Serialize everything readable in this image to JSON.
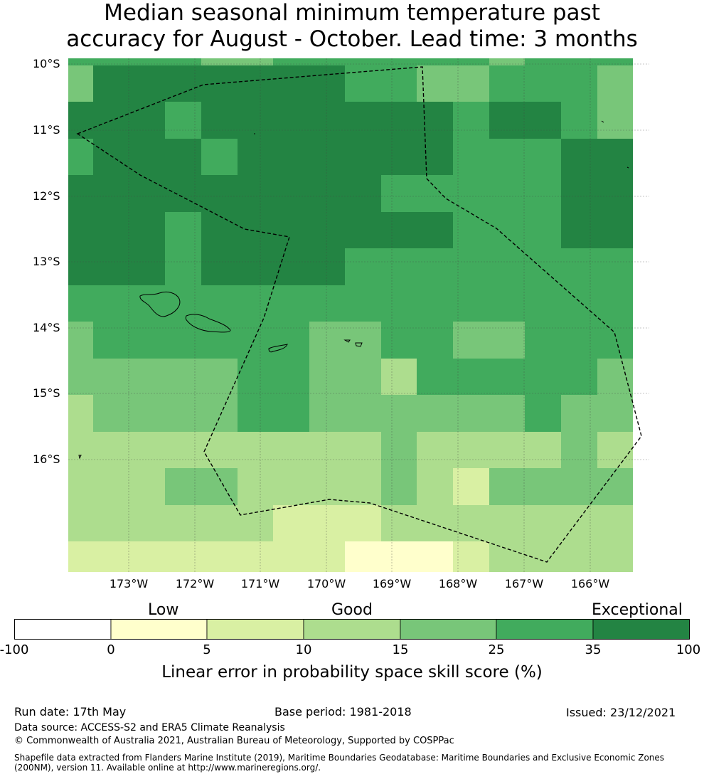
{
  "title": {
    "line1": "Median seasonal minimum temperature past",
    "line2": "accuracy for August - October. Lead time: 3 months"
  },
  "lat_labels": [
    "10°S",
    "11°S",
    "12°S",
    "13°S",
    "14°S",
    "15°S",
    "16°S"
  ],
  "lon_labels": [
    "173°W",
    "172°W",
    "171°W",
    "170°W",
    "169°W",
    "168°W",
    "167°W",
    "166°W"
  ],
  "colorbar": {
    "categories": [
      "Low",
      "Good",
      "Exceptional"
    ],
    "ticks": [
      "-100",
      "0",
      "5",
      "10",
      "15",
      "25",
      "35",
      "100"
    ],
    "colors": [
      "#ffffff",
      "#ffffcc",
      "#d9f0a3",
      "#addd8e",
      "#78c679",
      "#41ab5d",
      "#238443"
    ],
    "label": "Linear error in probability space skill score (%)"
  },
  "footer": {
    "run_date": "Run date: 17th May",
    "base_period": "Base period: 1981-2018",
    "issued": "Issued: 23/12/2021",
    "data_source": "Data source: ACCESS-S2 and ERA5 Climate Reanalysis",
    "copyright": "© Commonwealth of Australia 2021, Australian Bureau of Meteorology, Supported by COSPPac",
    "shapefile": "Shapefile data extracted from Flanders Marine Institute (2019), Maritime Boundaries Geodatabase: Maritime Boundaries and Exclusive Economic Zones (200NM), version 11. Available online at http://www.marineregions.org/."
  },
  "map": {
    "grid": [
      [
        5,
        5,
        5,
        5,
        4,
        4,
        5,
        5,
        5,
        5,
        5,
        5,
        4,
        5,
        5,
        5
      ],
      [
        4,
        6,
        6,
        6,
        6,
        6,
        6,
        6,
        5,
        5,
        4,
        4,
        5,
        5,
        5,
        4
      ],
      [
        6,
        6,
        6,
        5,
        6,
        6,
        6,
        6,
        6,
        6,
        6,
        5,
        6,
        6,
        5,
        4
      ],
      [
        5,
        6,
        6,
        6,
        5,
        6,
        6,
        6,
        6,
        6,
        6,
        5,
        5,
        5,
        6,
        6
      ],
      [
        6,
        6,
        6,
        6,
        6,
        6,
        6,
        6,
        6,
        5,
        5,
        5,
        5,
        5,
        6,
        6
      ],
      [
        6,
        6,
        6,
        5,
        6,
        6,
        6,
        6,
        6,
        6,
        6,
        5,
        5,
        5,
        6,
        6
      ],
      [
        6,
        6,
        6,
        5,
        6,
        6,
        6,
        6,
        5,
        5,
        5,
        5,
        5,
        5,
        5,
        5
      ],
      [
        5,
        5,
        5,
        5,
        5,
        5,
        5,
        5,
        5,
        5,
        5,
        5,
        5,
        5,
        5,
        5
      ],
      [
        4,
        5,
        5,
        5,
        5,
        5,
        5,
        4,
        4,
        5,
        5,
        4,
        4,
        5,
        5,
        5
      ],
      [
        4,
        4,
        4,
        4,
        4,
        5,
        5,
        4,
        4,
        3,
        5,
        5,
        5,
        5,
        5,
        4
      ],
      [
        3,
        4,
        4,
        4,
        4,
        5,
        5,
        4,
        4,
        4,
        4,
        4,
        4,
        5,
        4,
        4
      ],
      [
        3,
        3,
        3,
        3,
        3,
        3,
        3,
        3,
        3,
        4,
        3,
        3,
        3,
        3,
        4,
        3
      ],
      [
        3,
        3,
        3,
        4,
        4,
        3,
        3,
        3,
        3,
        4,
        3,
        2,
        4,
        4,
        4,
        4
      ],
      [
        3,
        3,
        3,
        3,
        3,
        3,
        2,
        2,
        2,
        3,
        3,
        3,
        3,
        3,
        3,
        3
      ],
      [
        2,
        2,
        2,
        2,
        2,
        2,
        2,
        2,
        1,
        1,
        1,
        2,
        3,
        3,
        3,
        3
      ]
    ]
  }
}
